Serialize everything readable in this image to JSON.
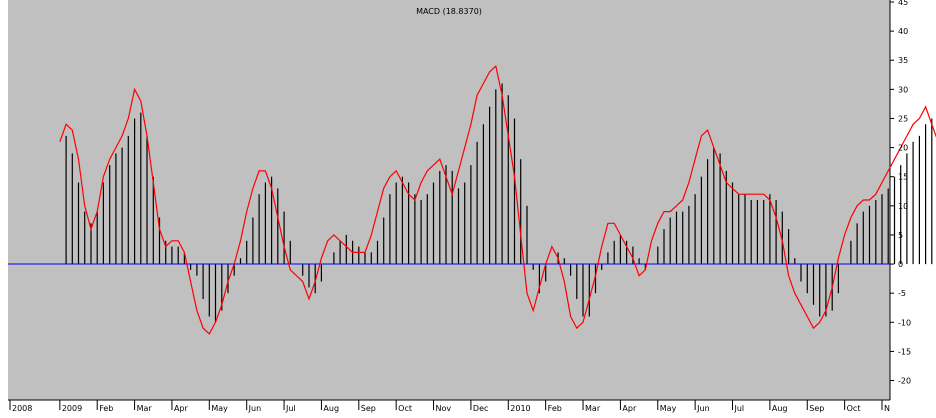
{
  "chart_data": {
    "type": "bar",
    "title": "MACD (18.8370)",
    "xlabel": "",
    "ylabel": "",
    "ylim": [
      -23,
      45
    ],
    "y_ticks": [
      45,
      40,
      35,
      30,
      25,
      20,
      15,
      10,
      5,
      0,
      -5,
      -10,
      -15,
      -20
    ],
    "x_ticks": [
      "2008",
      "2009",
      "Feb",
      "Mar",
      "Apr",
      "May",
      "Jun",
      "Jul",
      "Aug",
      "Sep",
      "Oct",
      "Nov",
      "Dec",
      "2010",
      "Feb",
      "Mar",
      "Apr",
      "May",
      "Jun",
      "Jul",
      "Aug",
      "Sep",
      "Oct",
      "N"
    ],
    "x_tick_index": [
      0,
      8,
      14,
      20,
      26,
      32,
      38,
      44,
      50,
      56,
      62,
      68,
      74,
      80,
      86,
      92,
      98,
      104,
      110,
      116,
      122,
      128,
      134,
      140
    ],
    "grid": false,
    "legend": "none",
    "colors": {
      "background": "#c0c0c0",
      "bars": "#000000",
      "signal_line": "#ff0000",
      "zero_line": "#0000ff"
    },
    "series": [
      {
        "type": "bar",
        "values": [
          22,
          19,
          14,
          9,
          7,
          9,
          14,
          17,
          19,
          20,
          22,
          25,
          26,
          22,
          15,
          8,
          4,
          3,
          3,
          2,
          -1,
          -2,
          -6,
          -9,
          -10,
          -8,
          -5,
          -2,
          1,
          4,
          8,
          12,
          14,
          15,
          13,
          9,
          4,
          0,
          -2,
          -4,
          -5,
          -3,
          0,
          2,
          4,
          5,
          4,
          3,
          2,
          2,
          4,
          8,
          12,
          14,
          15,
          14,
          12,
          11,
          12,
          14,
          16,
          17,
          16,
          13,
          14,
          17,
          21,
          24,
          27,
          30,
          31,
          29,
          25,
          18,
          10,
          -1,
          -5,
          -3,
          0,
          2,
          1,
          -2,
          -6,
          -9,
          -9,
          -5,
          -1,
          2,
          4,
          5,
          4,
          3,
          1,
          -1,
          0,
          3,
          6,
          8,
          9,
          9,
          10,
          12,
          15,
          18,
          20,
          19,
          16,
          14,
          12,
          12,
          11,
          11,
          11,
          12,
          11,
          9,
          6,
          1,
          -3,
          -5,
          -7,
          -9,
          -9,
          -8,
          -5,
          0,
          4,
          7,
          9,
          10,
          11,
          12,
          13,
          15,
          17,
          19,
          21,
          22,
          24,
          25,
          25,
          22
        ]
      },
      {
        "type": "line",
        "values": [
          21,
          24,
          23,
          18,
          10,
          6,
          9,
          15,
          18,
          20,
          22,
          25,
          30,
          28,
          22,
          14,
          6,
          3,
          4,
          4,
          2,
          -3,
          -8,
          -11,
          -12,
          -10,
          -7,
          -3,
          0,
          4,
          9,
          13,
          16,
          16,
          13,
          8,
          3,
          -1,
          -2,
          -3,
          -6,
          -3,
          1,
          4,
          5,
          4,
          3,
          2,
          2,
          2,
          5,
          9,
          13,
          15,
          16,
          14,
          12,
          11,
          14,
          16,
          17,
          18,
          15,
          12,
          16,
          20,
          24,
          29,
          31,
          33,
          34,
          29,
          22,
          15,
          5,
          -5,
          -8,
          -4,
          0,
          3,
          1,
          -3,
          -9,
          -11,
          -10,
          -6,
          -2,
          3,
          7,
          7,
          5,
          3,
          1,
          -2,
          -1,
          4,
          7,
          9,
          9,
          10,
          11,
          14,
          18,
          22,
          23,
          20,
          17,
          14,
          13,
          12,
          12,
          12,
          12,
          12,
          11,
          8,
          4,
          -2,
          -5,
          -7,
          -9,
          -11,
          -10,
          -8,
          -4,
          1,
          5,
          8,
          10,
          11,
          11,
          12,
          14,
          16,
          18,
          20,
          22,
          24,
          25,
          27,
          24,
          21
        ]
      }
    ]
  }
}
